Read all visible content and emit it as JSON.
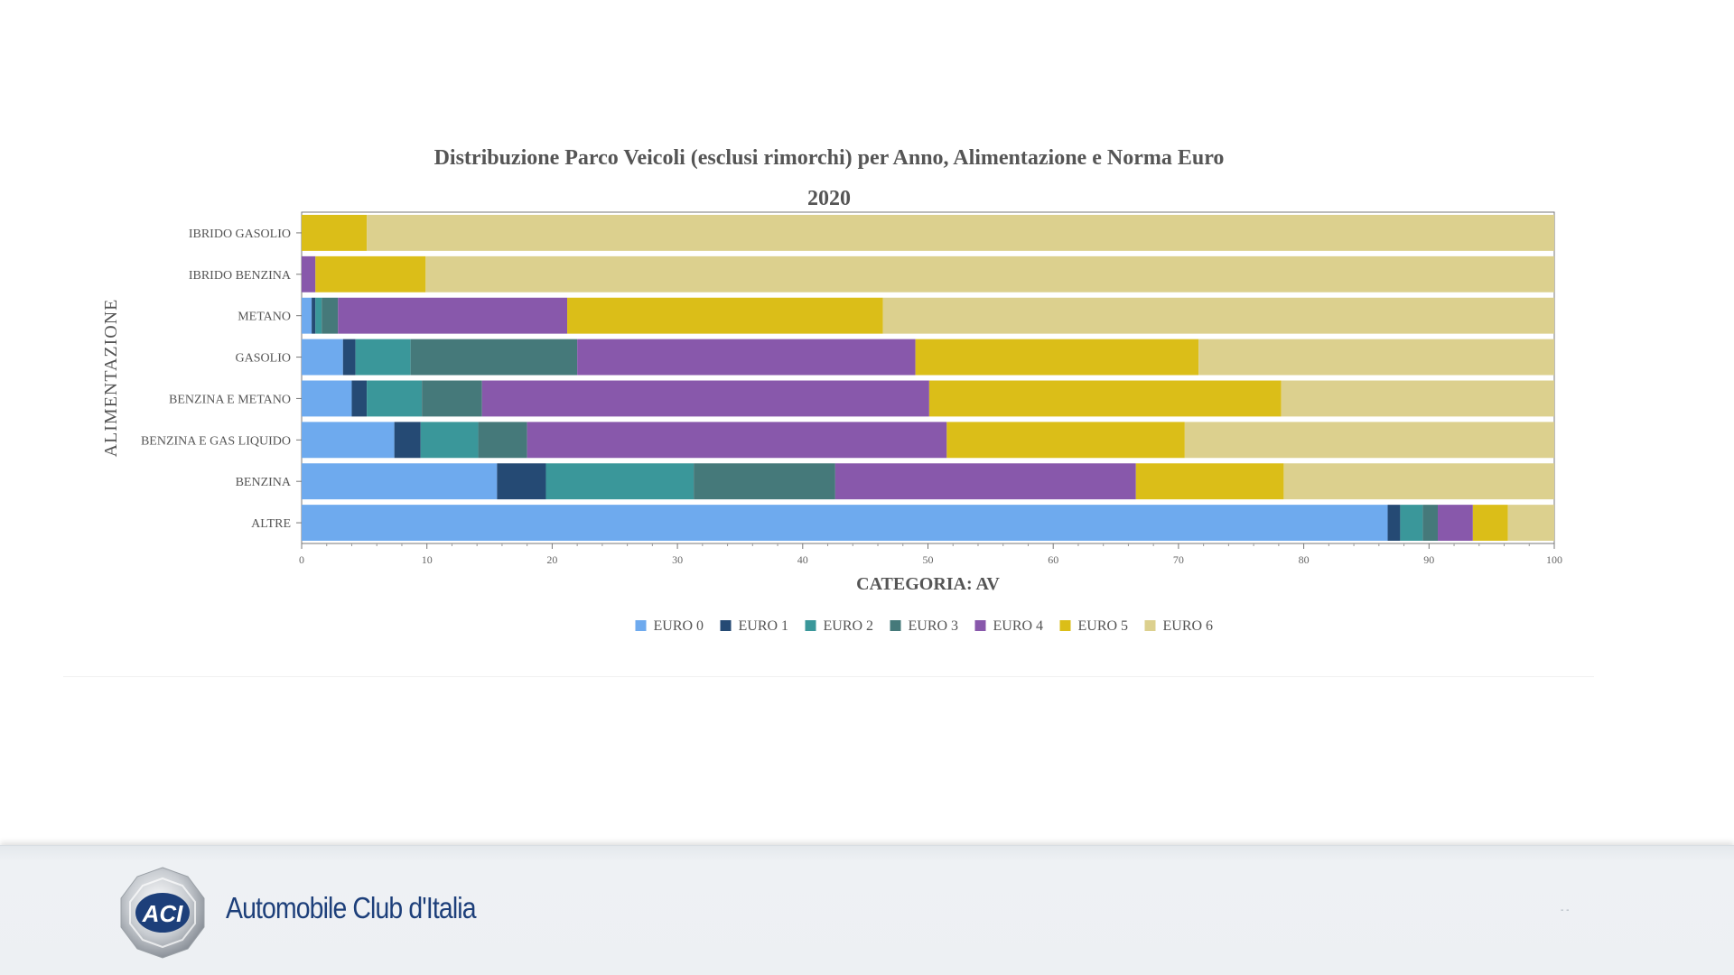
{
  "chart_data": {
    "type": "bar",
    "orientation": "horizontal",
    "stacked": true,
    "title": "Distribuzione Parco Veicoli (esclusi rimorchi) per Anno, Alimentazione e Norma Euro",
    "subtitle": "2020",
    "xlabel": "CATEGORIA: AV",
    "ylabel": "ALIMENTAZIONE",
    "xlim": [
      0,
      100
    ],
    "xticks": [
      0,
      10,
      20,
      30,
      40,
      50,
      60,
      70,
      80,
      90,
      100
    ],
    "grid": false,
    "legend_position": "bottom",
    "categories": [
      "IBRIDO GASOLIO",
      "IBRIDO BENZINA",
      "METANO",
      "GASOLIO",
      "BENZINA E METANO",
      "BENZINA E GAS LIQUIDO",
      "BENZINA",
      "ALTRE"
    ],
    "series": [
      {
        "name": "EURO 0",
        "color": "#6eaaee",
        "values": [
          0,
          0,
          0.8,
          3.3,
          4.0,
          7.4,
          15.6,
          86.7
        ]
      },
      {
        "name": "EURO 1",
        "color": "#254a74",
        "values": [
          0,
          0,
          0.3,
          1.0,
          1.2,
          2.1,
          3.9,
          1.0
        ]
      },
      {
        "name": "EURO 2",
        "color": "#3a979a",
        "values": [
          0,
          0,
          0.5,
          4.4,
          4.4,
          4.6,
          11.8,
          1.8
        ]
      },
      {
        "name": "EURO 3",
        "color": "#45797a",
        "values": [
          0,
          0,
          1.3,
          13.3,
          4.8,
          3.9,
          11.3,
          1.2
        ]
      },
      {
        "name": "EURO 4",
        "color": "#8858ab",
        "values": [
          0,
          1.1,
          18.3,
          27.0,
          35.7,
          33.5,
          24.0,
          2.8
        ]
      },
      {
        "name": "EURO 5",
        "color": "#dbbe18",
        "values": [
          5.2,
          8.8,
          25.2,
          22.6,
          28.1,
          19.0,
          11.8,
          2.8
        ]
      },
      {
        "name": "EURO 6",
        "color": "#dcd08e",
        "values": [
          94.8,
          90.1,
          53.6,
          28.4,
          21.8,
          29.5,
          21.6,
          3.7
        ]
      }
    ]
  },
  "footer": {
    "brand_name": "Automobile Club d'Italia",
    "logo_text": "ACI",
    "dots": "-    -"
  }
}
